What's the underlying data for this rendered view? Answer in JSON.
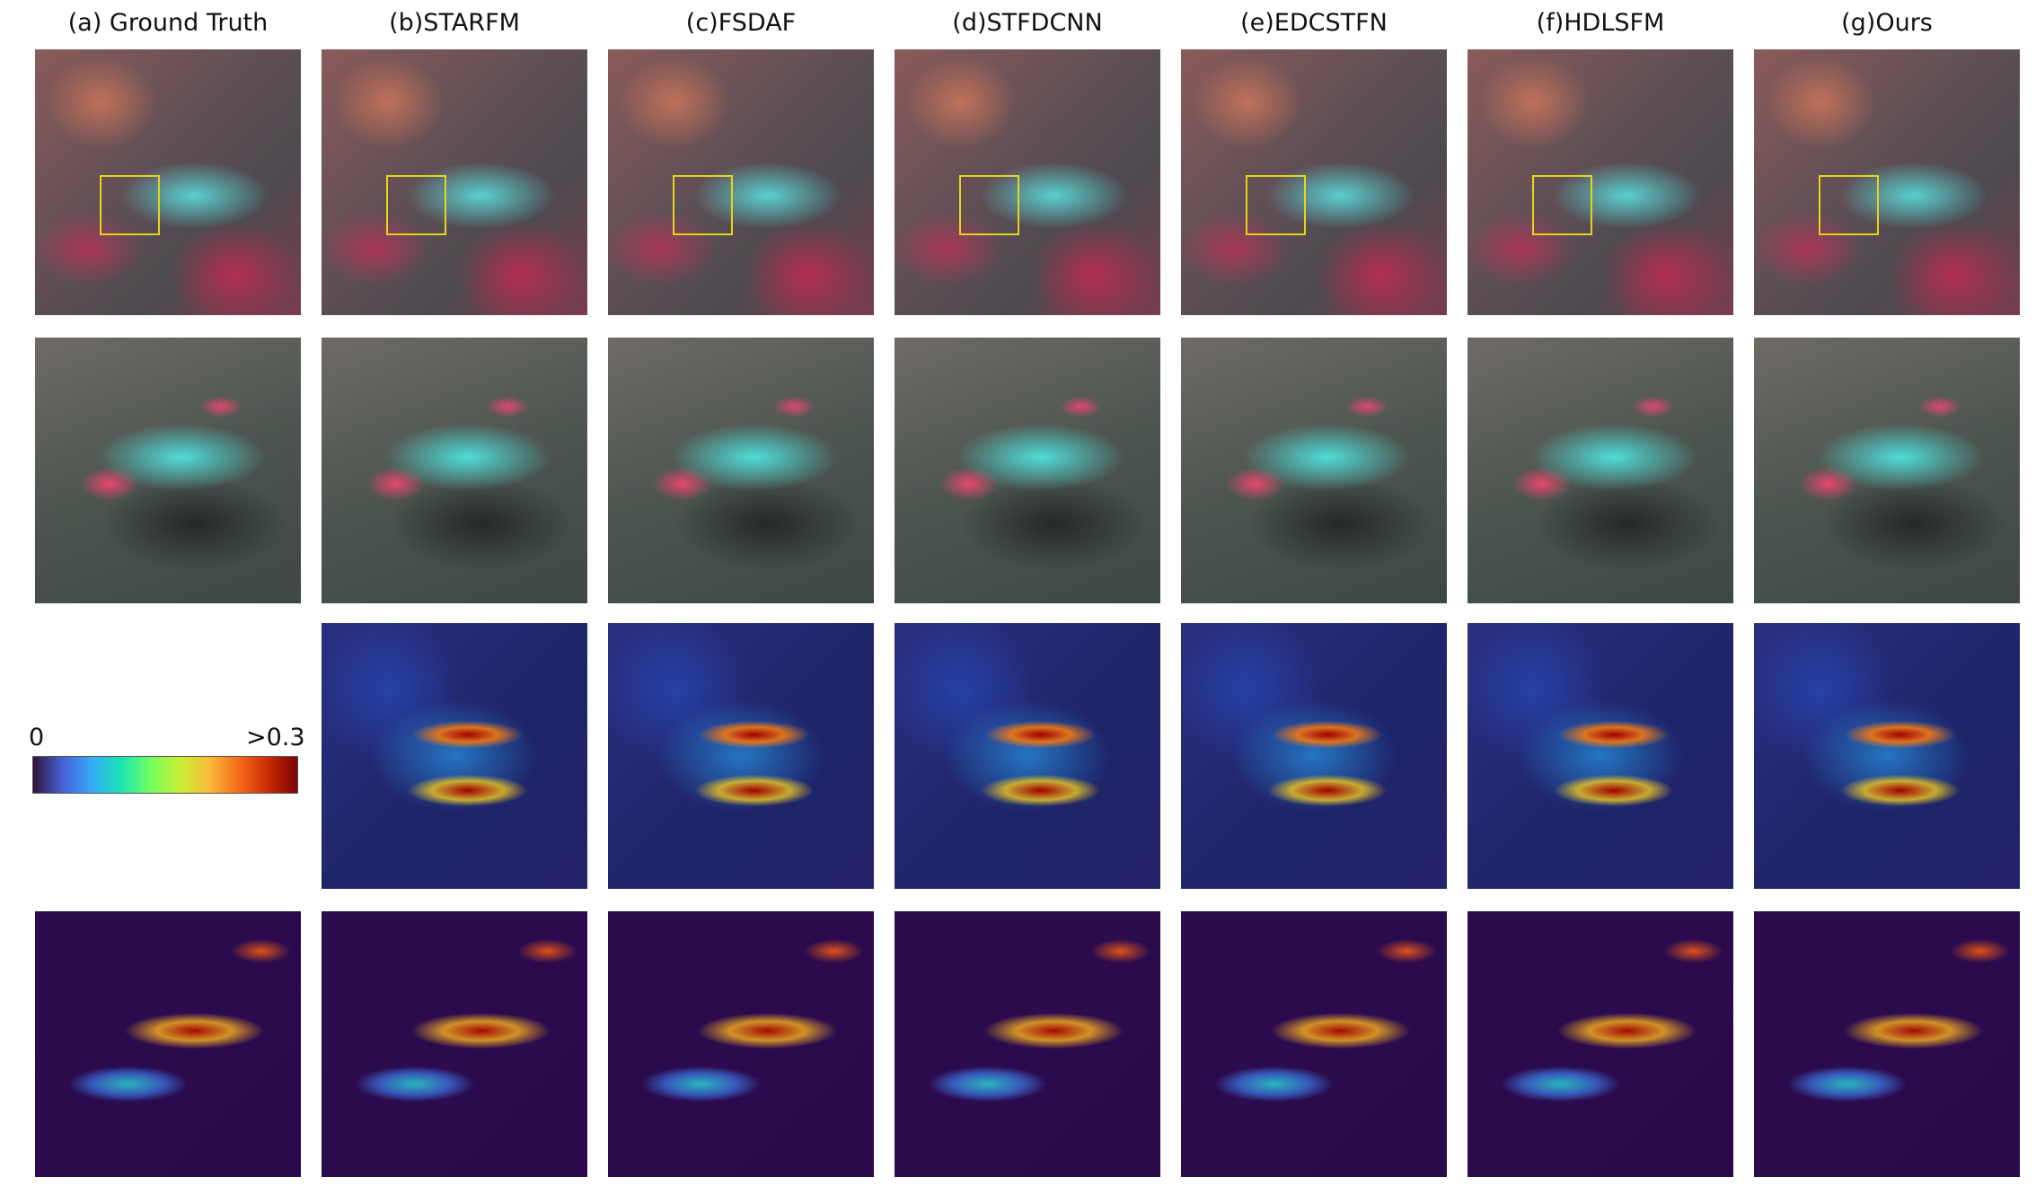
{
  "columns": [
    "(a)  Ground Truth",
    "(b)STARFM",
    "(c)FSDAF",
    "(d)STFDCNN",
    "(e)EDCSTFN",
    "(f)HDLSFM",
    "(g)Ours"
  ],
  "colorbar": {
    "labels": [
      "0",
      ">0.3"
    ]
  }
}
